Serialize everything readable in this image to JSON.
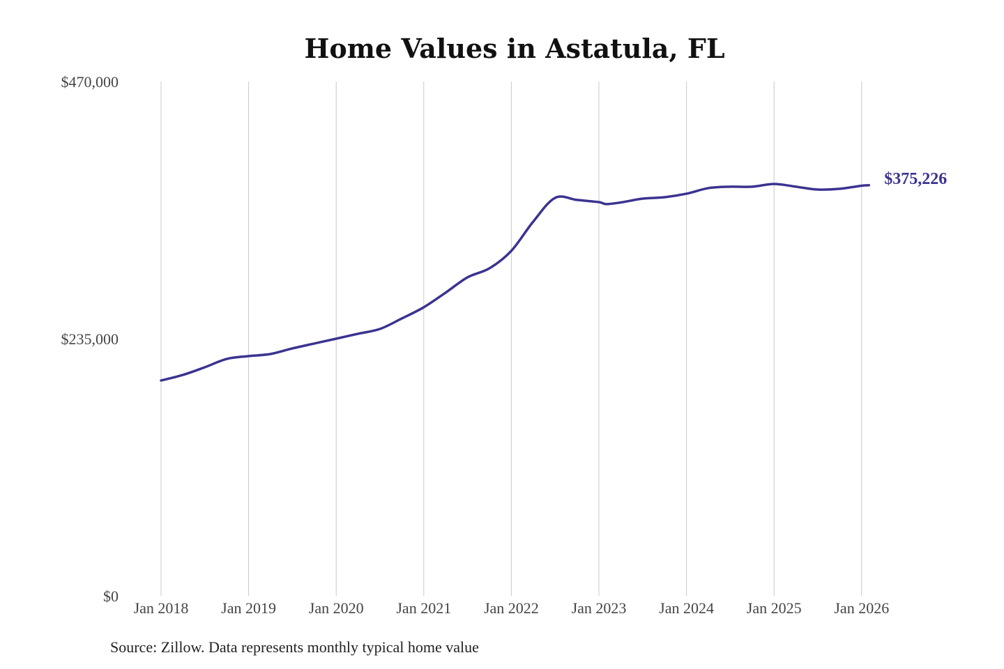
{
  "chart_data": {
    "type": "line",
    "title": "Home Values in Astatula, FL",
    "xlabel": "",
    "ylabel": "",
    "ylim": [
      0,
      470000
    ],
    "y_ticks": [
      0,
      235000,
      470000
    ],
    "y_tick_labels": [
      "$0",
      "$235,000",
      "$470,000"
    ],
    "x_ticks": [
      "2018-01",
      "2019-01",
      "2020-01",
      "2021-01",
      "2022-01",
      "2023-01",
      "2024-01",
      "2025-01",
      "2026-01"
    ],
    "x_tick_labels": [
      "Jan 2018",
      "Jan 2019",
      "Jan 2020",
      "Jan 2021",
      "Jan 2022",
      "Jan 2023",
      "Jan 2024",
      "Jan 2025",
      "Jan 2026"
    ],
    "grid": "vertical lines at x ticks",
    "line_color": "#3a3390",
    "end_label": "$375,226",
    "series": [
      {
        "x": [
          "2018-01",
          "2018-04",
          "2018-07",
          "2018-10",
          "2019-01",
          "2019-04",
          "2019-07",
          "2019-10",
          "2020-01",
          "2020-04",
          "2020-07",
          "2020-10",
          "2021-01",
          "2021-04",
          "2021-07",
          "2021-10",
          "2022-01",
          "2022-04",
          "2022-07",
          "2022-10",
          "2023-01",
          "2023-02",
          "2023-04",
          "2023-07",
          "2023-10",
          "2024-01",
          "2024-04",
          "2024-07",
          "2024-10",
          "2025-01",
          "2025-04",
          "2025-07",
          "2025-10",
          "2026-01",
          "2026-02"
        ],
        "y": [
          196800,
          201900,
          208900,
          216500,
          219100,
          221000,
          226100,
          230600,
          235000,
          239500,
          243900,
          253500,
          263700,
          277100,
          291100,
          299300,
          315300,
          342000,
          363700,
          361800,
          359800,
          358000,
          359500,
          363000,
          364300,
          367500,
          372600,
          373900,
          373900,
          376400,
          373900,
          371300,
          372000,
          374800,
          375226
        ]
      }
    ]
  },
  "source": "Source: Zillow. Data represents monthly typical home value"
}
